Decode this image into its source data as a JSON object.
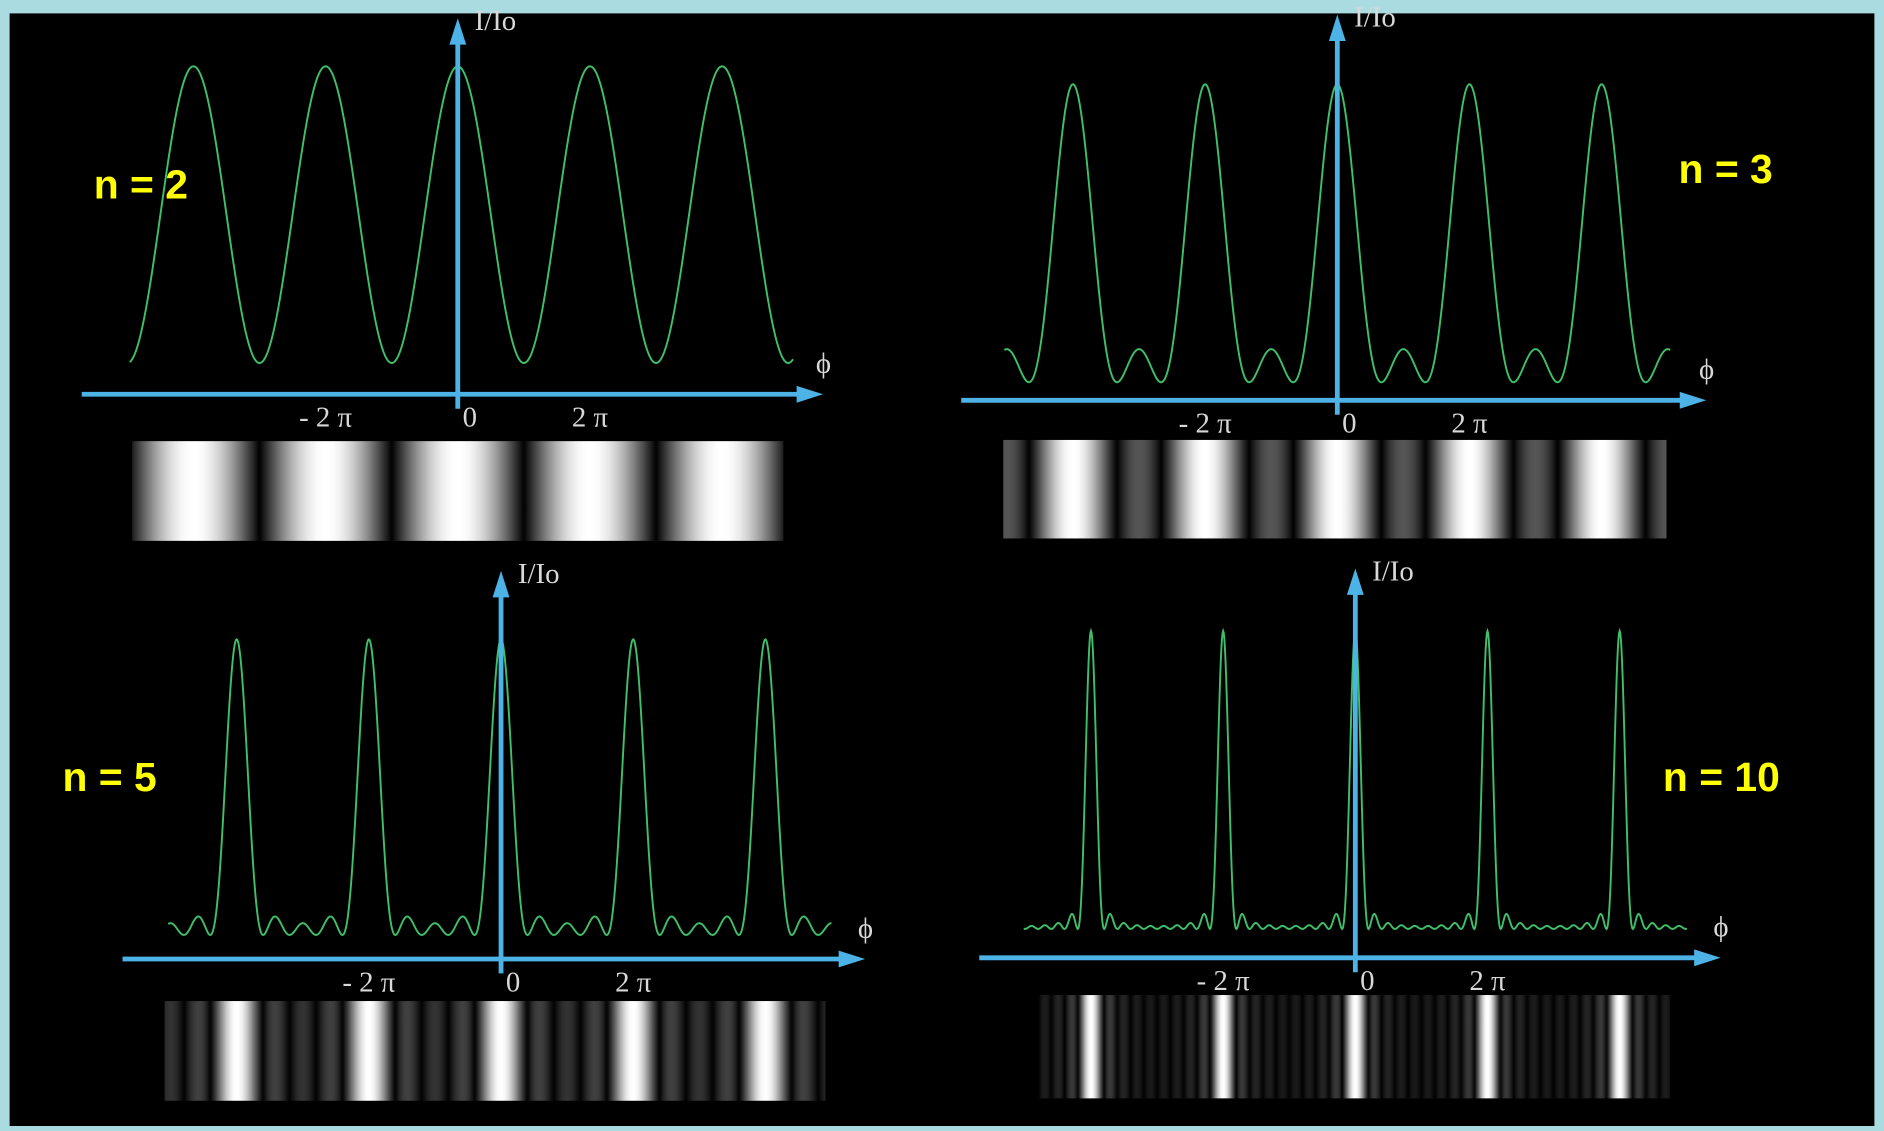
{
  "panels": [
    {
      "label": "n = 2",
      "slits": 2
    },
    {
      "label": "n = 3",
      "slits": 3
    },
    {
      "label": "n = 5",
      "slits": 5
    },
    {
      "label": "n = 10",
      "slits": 10
    }
  ],
  "axes": {
    "y_label": "I/Io",
    "x_label": "ϕ",
    "ticks": [
      "- 2 π",
      "0",
      "2 π"
    ]
  }
}
